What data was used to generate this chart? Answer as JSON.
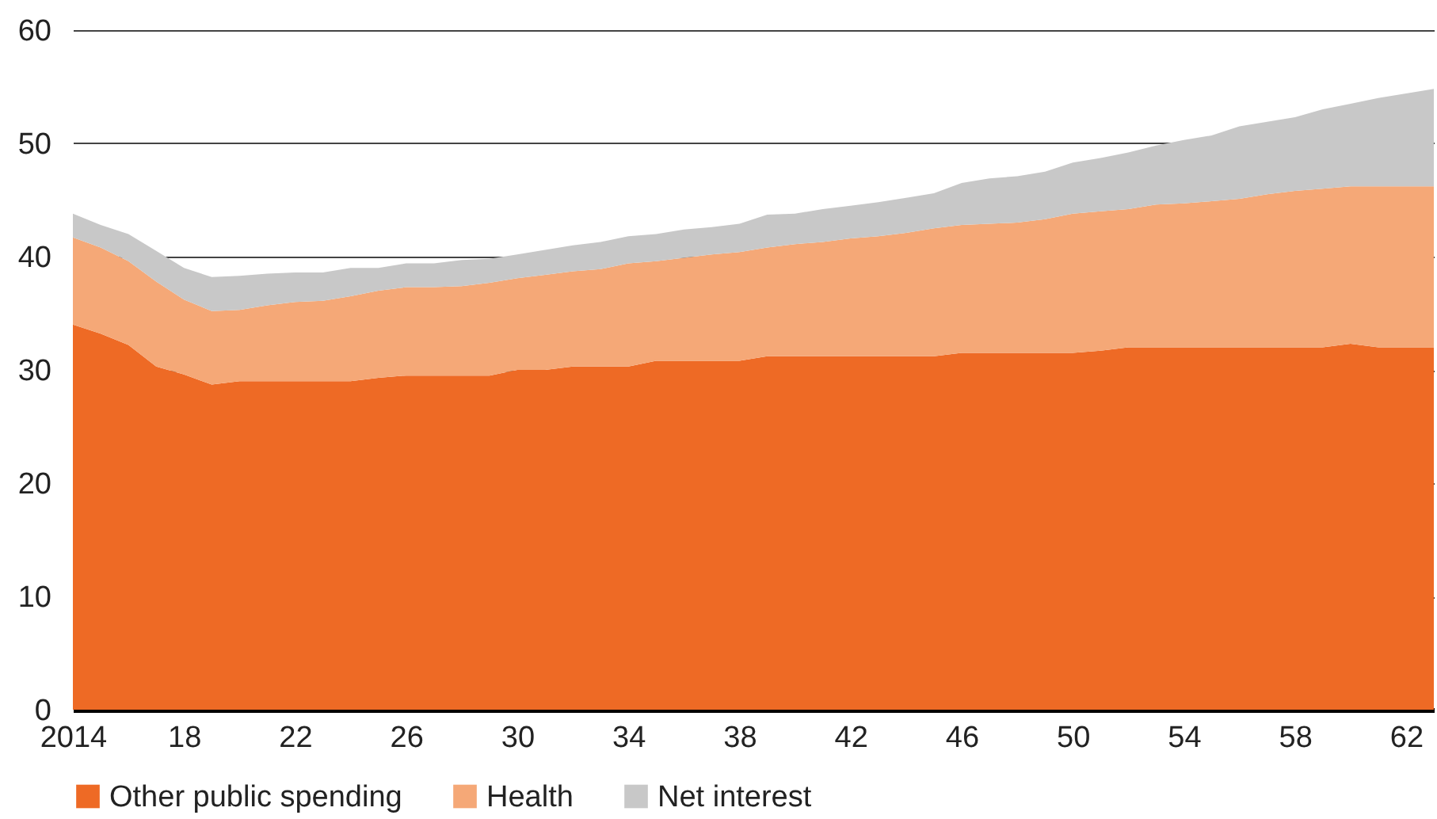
{
  "chart_data": {
    "type": "area",
    "stacked": true,
    "x": [
      2014,
      2015,
      2016,
      2017,
      2018,
      2019,
      2020,
      2021,
      2022,
      2023,
      2024,
      2025,
      2026,
      2027,
      2028,
      2029,
      2030,
      2031,
      2032,
      2033,
      2034,
      2035,
      2036,
      2037,
      2038,
      2039,
      2040,
      2041,
      2042,
      2043,
      2044,
      2045,
      2046,
      2047,
      2048,
      2049,
      2050,
      2051,
      2052,
      2053,
      2054,
      2055,
      2056,
      2057,
      2058,
      2059,
      2060,
      2061,
      2062,
      2063
    ],
    "series": [
      {
        "name": "Other public spending",
        "color": "#ee6a25",
        "values": [
          34,
          33.2,
          32.2,
          30.3,
          29.6,
          28.7,
          29,
          29,
          29,
          29,
          29,
          29.3,
          29.5,
          29.5,
          29.5,
          29.5,
          30,
          30,
          30.3,
          30.3,
          30.3,
          30.8,
          30.8,
          30.8,
          30.8,
          31.2,
          31.2,
          31.2,
          31.2,
          31.2,
          31.2,
          31.2,
          31.5,
          31.5,
          31.5,
          31.5,
          31.5,
          31.7,
          32,
          32,
          32,
          32,
          32,
          32,
          32,
          32,
          32.3,
          32,
          32,
          32
        ]
      },
      {
        "name": "Health",
        "color": "#f5a877",
        "values": [
          7.7,
          7.6,
          7.4,
          7.5,
          6.6,
          6.5,
          6.3,
          6.7,
          7,
          7.1,
          7.5,
          7.7,
          7.8,
          7.8,
          7.9,
          8.2,
          8.1,
          8.4,
          8.4,
          8.6,
          9.1,
          8.8,
          9.1,
          9.4,
          9.6,
          9.6,
          9.9,
          10.1,
          10.4,
          10.6,
          10.9,
          11.3,
          11.3,
          11.4,
          11.5,
          11.8,
          12.3,
          12.3,
          12.2,
          12.6,
          12.7,
          12.9,
          13.1,
          13.5,
          13.8,
          14,
          13.9,
          14.2,
          14.2,
          14.2
        ]
      },
      {
        "name": "Net interest",
        "color": "#c8c8c8",
        "values": [
          2.1,
          2,
          2.4,
          2.7,
          2.8,
          3,
          3,
          2.8,
          2.6,
          2.5,
          2.5,
          2,
          2.1,
          2.1,
          2.3,
          2.1,
          2.1,
          2.2,
          2.3,
          2.4,
          2.4,
          2.4,
          2.5,
          2.4,
          2.5,
          2.9,
          2.7,
          2.9,
          2.9,
          3,
          3.1,
          3.1,
          3.7,
          4,
          4.1,
          4.2,
          4.5,
          4.7,
          5,
          5.2,
          5.6,
          5.8,
          6.4,
          6.4,
          6.5,
          7,
          7.3,
          7.8,
          8.2,
          8.6
        ]
      }
    ],
    "xlim": [
      2014,
      2063
    ],
    "xticks": [
      2014,
      {
        "value": 2018,
        "label": "18"
      },
      {
        "value": 2022,
        "label": "22"
      },
      {
        "value": 2026,
        "label": "26"
      },
      {
        "value": 2030,
        "label": "30"
      },
      {
        "value": 2034,
        "label": "34"
      },
      {
        "value": 2038,
        "label": "38"
      },
      {
        "value": 2042,
        "label": "42"
      },
      {
        "value": 2046,
        "label": "46"
      },
      {
        "value": 2050,
        "label": "50"
      },
      {
        "value": 2054,
        "label": "54"
      },
      {
        "value": 2058,
        "label": "58"
      },
      {
        "value": 2062,
        "label": "62"
      }
    ],
    "ylim": [
      0,
      60
    ],
    "yticks": [
      0,
      10,
      20,
      30,
      40,
      50,
      60
    ],
    "grid": "y",
    "legend": "bottom left"
  }
}
